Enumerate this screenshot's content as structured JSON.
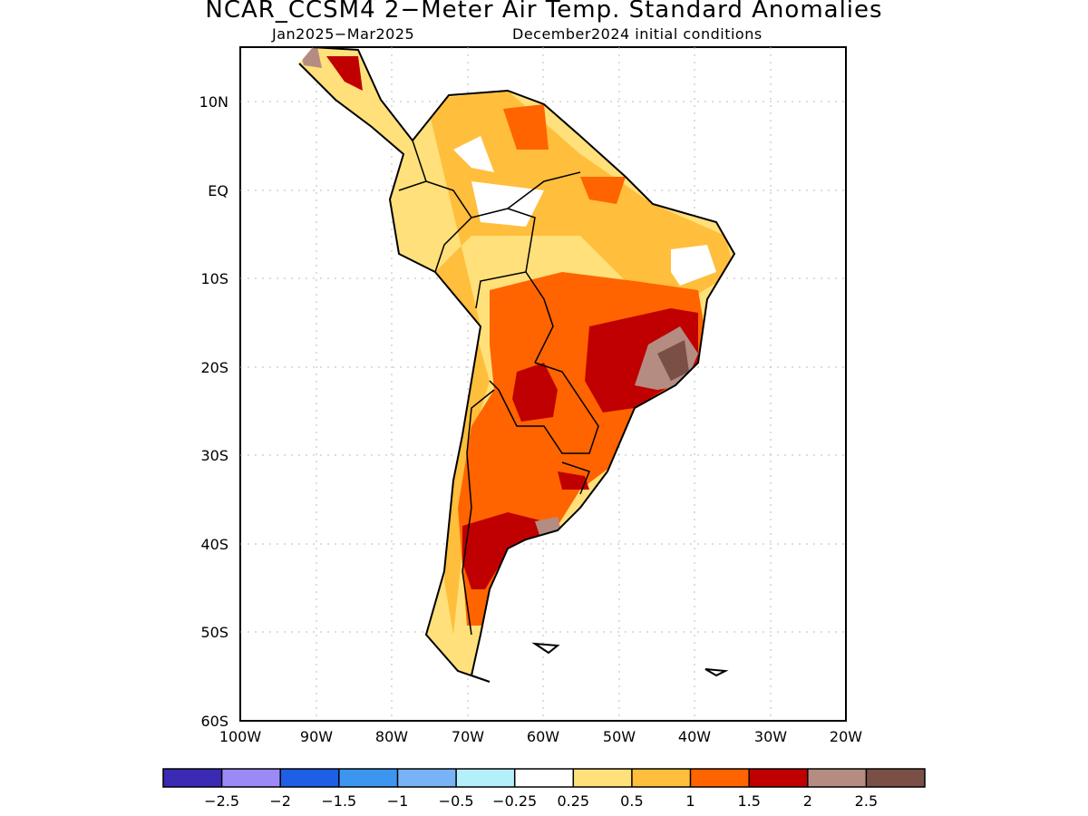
{
  "title": "NCAR_CCSM4 2−Meter Air Temp. Standard Anomalies",
  "subtitle_left": "Jan2025−Mar2025",
  "subtitle_right": "December2024 initial conditions",
  "map": {
    "lon_ticks": [
      "100W",
      "90W",
      "80W",
      "70W",
      "60W",
      "50W",
      "40W",
      "30W",
      "20W"
    ],
    "lat_ticks": [
      "10N",
      "EQ",
      "10S",
      "20S",
      "30S",
      "40S",
      "50S",
      "60S"
    ]
  },
  "colorbar": {
    "colors": [
      "#3a2ab4",
      "#9b8af5",
      "#1e5fe6",
      "#3c96f0",
      "#78b4f5",
      "#b4f0fa",
      "#ffffff",
      "#ffe07a",
      "#ffbe3c",
      "#ff6400",
      "#c00000",
      "#b48c82",
      "#7a5046"
    ],
    "labels": [
      "−2.5",
      "−2",
      "−1.5",
      "−1",
      "−0.5",
      "−0.25",
      "0.25",
      "0.5",
      "1",
      "1.5",
      "2",
      "2.5"
    ]
  }
}
